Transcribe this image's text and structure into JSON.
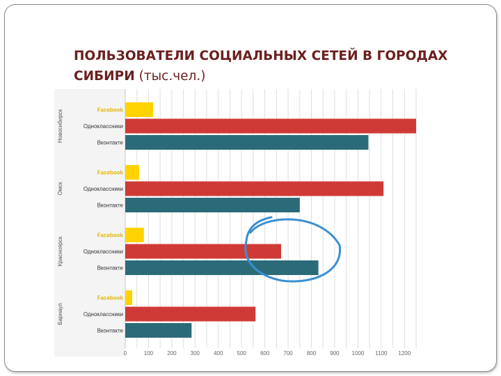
{
  "slide": {
    "title_bold": "ПОЛЬЗОВАТЕЛИ СОЦИАЛЬНЫХ СЕТЕЙ В ГОРОДАХ СИБИРИ",
    "title_normal": "(тыс.чел.)"
  },
  "chart_data": {
    "type": "bar",
    "orientation": "horizontal",
    "categories": [
      "Новосибирск",
      "Омск",
      "Красноярск",
      "Барнаул"
    ],
    "series": [
      {
        "name": "Facebook",
        "values": [
          120,
          60,
          80,
          30
        ]
      },
      {
        "name": "Одноклассники",
        "values": [
          1250,
          1110,
          670,
          560
        ]
      },
      {
        "name": "Вконтакте",
        "values": [
          1045,
          750,
          830,
          285
        ]
      }
    ],
    "xlim": [
      0,
      1250
    ],
    "xticks": [
      0,
      100,
      200,
      300,
      400,
      500,
      600,
      700,
      800,
      900,
      1000,
      1100,
      1200
    ],
    "grid": true,
    "colors": {
      "Facebook": "#ffd200",
      "Одноклассники": "#d03a36",
      "Вконтакте": "#2b6b78"
    },
    "annotation": {
      "type": "hand-drawn-circle",
      "color": "#3a8fd1",
      "group": "Красноярск"
    }
  }
}
